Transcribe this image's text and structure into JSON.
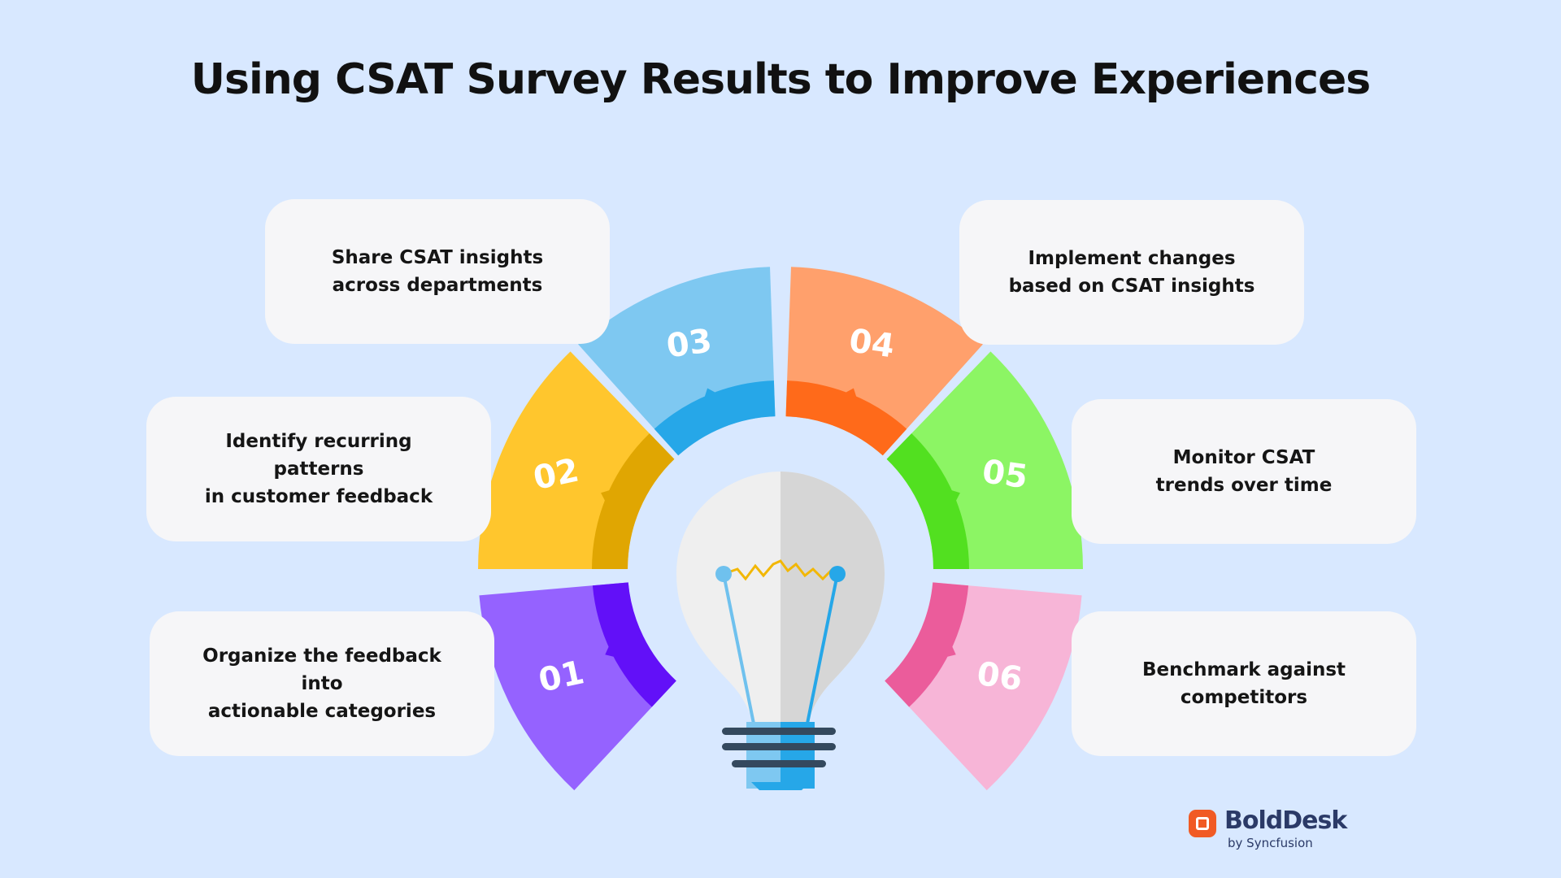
{
  "title": "Using CSAT Survey Results to Improve Experiences",
  "steps": [
    {
      "number": "01",
      "text": "Organize the feedback into actionable categories",
      "color": "#9562ff",
      "accent": "#6210f8"
    },
    {
      "number": "02",
      "text": "Identify recurring patterns in customer feedback",
      "color": "#ffc62d",
      "accent": "#e0a602"
    },
    {
      "number": "03",
      "text": "Share CSAT insights across departments",
      "color": "#7ec8f1",
      "accent": "#26a7e8"
    },
    {
      "number": "04",
      "text": "Implement changes based on CSAT insights",
      "color": "#ffa06c",
      "accent": "#ff6a1a"
    },
    {
      "number": "05",
      "text": "Monitor CSAT trends over time",
      "color": "#8cf564",
      "accent": "#52e020"
    },
    {
      "number": "06",
      "text": "Benchmark against competitors",
      "color": "#f7b5d7",
      "accent": "#eb5c9b"
    }
  ],
  "card_lines": {
    "step1": "Organize the feedback into\nactionable categories",
    "step2": "Identify recurring patterns\nin customer feedback",
    "step3": "Share CSAT insights\nacross departments",
    "step4": "Implement changes\nbased on CSAT insights",
    "step5": "Monitor CSAT\ntrends over time",
    "step6": "Benchmark against\ncompetitors"
  },
  "center_icon": "light-bulb-icon",
  "brand": {
    "name": "BoldDesk",
    "sub": "by Syncfusion",
    "color": "#f15a24"
  }
}
